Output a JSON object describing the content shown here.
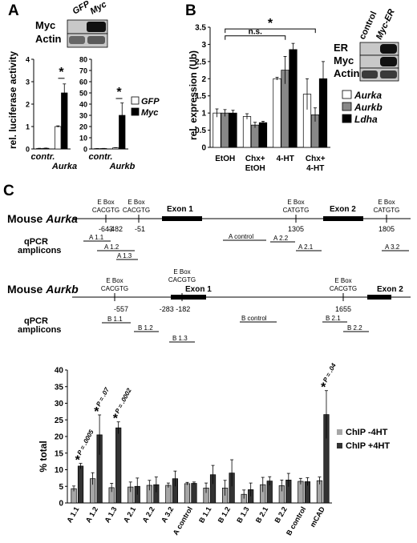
{
  "panels": {
    "A": {
      "letter": "A",
      "blot": {
        "lanes": [
          "GFP",
          "Myc"
        ],
        "rows": [
          "Myc",
          "Actin"
        ]
      },
      "ylabel": "rel. luciferase activity",
      "legend": [
        "GFP",
        "Myc"
      ],
      "colors": {
        "GFP": "#ffffff",
        "Myc": "#000000"
      },
      "star": "*"
    },
    "B": {
      "letter": "B",
      "ylabel": "rel. expression (Ub)",
      "sig": [
        "*",
        "n.s."
      ],
      "legend": [
        "Aurka",
        "Aurkb",
        "Ldha"
      ],
      "colors": {
        "Aurka": "#ffffff",
        "Aurkb": "#888888",
        "Ldha": "#000000"
      },
      "blot": {
        "lanes": [
          "control",
          "Myc-ER"
        ],
        "rows": [
          "ER",
          "Myc",
          "Actin"
        ]
      }
    },
    "C": {
      "letter": "C",
      "aurka": {
        "label_prefix": "Mouse",
        "gene": "Aurka",
        "amplicons_label": [
          "qPCR",
          "amplicons"
        ],
        "eboxes": [
          {
            "t1": "E Box",
            "t2": "CACGTG",
            "pos": "-643"
          },
          {
            "t1": "E Box",
            "t2": "CACGTG",
            "pos": "-482"
          },
          {
            "t1": "E Box",
            "t2": "CATGTG",
            "pos": "1305"
          },
          {
            "t1": "E Box",
            "t2": "CATGTG",
            "pos": "1805"
          }
        ],
        "exons": [
          "Exon 1",
          "Exon 2"
        ],
        "exon1_pos": "-51",
        "amplicons": [
          "A 1.1",
          "A 1.2",
          "A 1.3",
          "A control",
          "A 2.2",
          "A 2.1",
          "A 3.2"
        ]
      },
      "aurkb": {
        "label_prefix": "Mouse",
        "gene": "Aurkb",
        "amplicons_label": [
          "qPCR",
          "amplicons"
        ],
        "eboxes": [
          {
            "t1": "E Box",
            "t2": "CACGTG",
            "pos": "-557"
          },
          {
            "t1": "E Box",
            "t2": "CACGTG",
            "pos": "-283 -182"
          },
          {
            "t1": "E Box",
            "t2": "CACGTG",
            "pos": "1655"
          }
        ],
        "exons": [
          "Exon 1",
          "Exon 2"
        ],
        "amplicons": [
          "B 1.1",
          "B 1.2",
          "B 1.3",
          "B control",
          "B 2.1",
          "B 2.2"
        ]
      }
    }
  },
  "chart_data": [
    {
      "type": "bar",
      "panel": "A",
      "ylabel": "rel. luciferase activity",
      "ylim": [
        0,
        4
      ],
      "yticks": [
        0,
        1,
        2,
        3,
        4
      ],
      "categories": [
        "contr.",
        "Aurka"
      ],
      "series": [
        {
          "name": "GFP",
          "values": [
            0.02,
            1.0
          ]
        },
        {
          "name": "Myc",
          "values": [
            0.03,
            2.5
          ]
        }
      ],
      "errors": {
        "GFP": [
          0.01,
          0.03
        ],
        "Myc": [
          0.01,
          0.4
        ]
      }
    },
    {
      "type": "bar",
      "panel": "A",
      "ylim": [
        0,
        80
      ],
      "yticks": [
        0,
        10,
        20,
        30,
        40,
        50,
        60,
        70,
        80
      ],
      "categories": [
        "contr.",
        "Aurkb"
      ],
      "series": [
        {
          "name": "GFP",
          "values": [
            0.3,
            1.0
          ]
        },
        {
          "name": "Myc",
          "values": [
            0.4,
            30
          ]
        }
      ],
      "errors": {
        "GFP": [
          0.1,
          0.2
        ],
        "Myc": [
          0.1,
          11
        ]
      }
    },
    {
      "type": "bar",
      "panel": "B",
      "ylabel": "rel. expression (Ub)",
      "ylim": [
        0,
        3.5
      ],
      "yticks": [
        0,
        0.5,
        1,
        1.5,
        2,
        2.5,
        3,
        3.5
      ],
      "categories": [
        "EtOH",
        "Chx+ EtOH",
        "4-HT",
        "Chx+ 4-HT"
      ],
      "series": [
        {
          "name": "Aurka",
          "values": [
            1.0,
            0.9,
            2.0,
            1.55
          ]
        },
        {
          "name": "Aurkb",
          "values": [
            1.0,
            0.65,
            2.25,
            0.95
          ]
        },
        {
          "name": "Ldha",
          "values": [
            1.0,
            0.72,
            2.85,
            2.0
          ]
        }
      ],
      "errors": {
        "Aurka": [
          0.12,
          0.08,
          0.04,
          0.45
        ],
        "Aurkb": [
          0.1,
          0.08,
          0.4,
          0.2
        ],
        "Ldha": [
          0.08,
          0.04,
          0.18,
          0.5
        ]
      }
    },
    {
      "type": "bar",
      "panel": "C",
      "ylabel": "% total",
      "ylim": [
        0,
        40
      ],
      "yticks": [
        0,
        5,
        10,
        15,
        20,
        25,
        30,
        35,
        40
      ],
      "categories": [
        "A 1.1",
        "A 1.2",
        "A 1.3",
        "A 2.1",
        "A 2.2",
        "A 3.2",
        "A control",
        "B 1.1",
        "B 1.2",
        "B 1.3",
        "B 2.1",
        "B 2.2",
        "B control",
        "mCAD"
      ],
      "series": [
        {
          "name": "ChIP -4HT",
          "values": [
            4.3,
            7.3,
            4.6,
            4.8,
            5.3,
            5.3,
            5.8,
            4.5,
            4.5,
            2.6,
            5.5,
            5.2,
            6.5,
            6.7
          ]
        },
        {
          "name": "ChIP +4HT",
          "values": [
            11.1,
            20.5,
            22.6,
            5.0,
            5.5,
            7.3,
            5.9,
            8.5,
            9.0,
            4.0,
            6.6,
            6.9,
            6.4,
            26.6
          ]
        }
      ],
      "errors": {
        "ChIP -4HT": [
          0.8,
          1.8,
          1.3,
          1.5,
          1.5,
          0.7,
          0.4,
          1.5,
          2.3,
          1.3,
          2.2,
          1.7,
          0.9,
          1.1
        ],
        "ChIP +4HT": [
          0.8,
          6.0,
          1.8,
          2.5,
          2.3,
          2.3,
          0.4,
          2.8,
          4.0,
          2.0,
          1.3,
          2.0,
          1.2,
          7.2
        ]
      },
      "annotations": [
        {
          "category": "A 1.1",
          "star": "*",
          "text": "P = .0005"
        },
        {
          "category": "A 1.2",
          "star": "*",
          "text": "P = .07"
        },
        {
          "category": "A 1.3",
          "star": "*",
          "text": "P = .0002"
        },
        {
          "category": "mCAD",
          "star": "*",
          "text": "P = .04"
        }
      ],
      "colors": {
        "ChIP -4HT": "#a6a6a6",
        "ChIP +4HT": "#333333"
      }
    }
  ]
}
